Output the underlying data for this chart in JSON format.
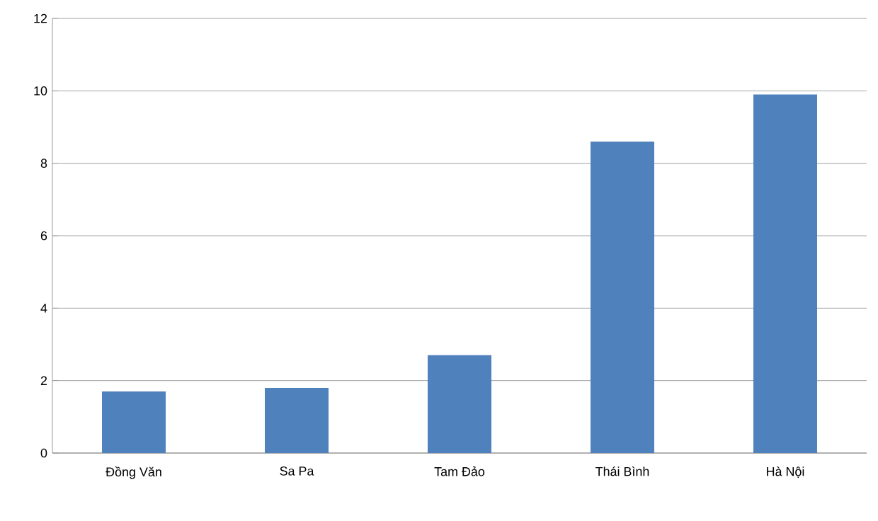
{
  "chart_data": {
    "type": "bar",
    "categories": [
      "Đồng Văn",
      "Sa Pa",
      "Tam Đảo",
      "Thái Bình",
      "Hà Nội"
    ],
    "values": [
      1.7,
      1.8,
      2.7,
      8.6,
      9.9
    ],
    "color": "#4f81bd",
    "ylim": [
      0,
      12
    ],
    "yticks": [
      0,
      2,
      4,
      6,
      8,
      10,
      12
    ],
    "grid": "y"
  }
}
